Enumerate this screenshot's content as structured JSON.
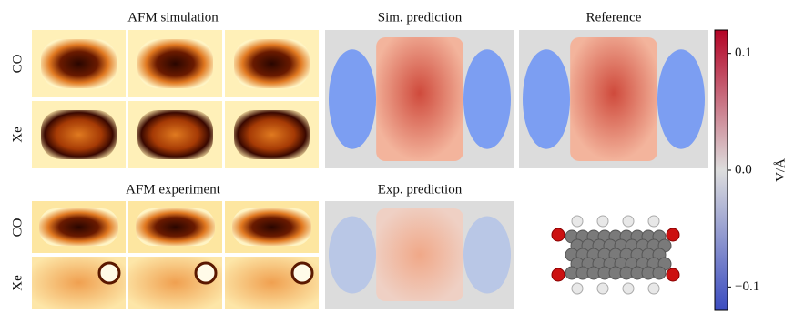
{
  "panels": {
    "afm_simulation": "AFM simulation",
    "sim_prediction": "Sim. prediction",
    "reference": "Reference",
    "afm_experiment": "AFM experiment",
    "exp_prediction": "Exp. prediction"
  },
  "row_labels": {
    "sim_top": "CO",
    "sim_bottom": "Xe",
    "exp_top": "CO",
    "exp_bottom": "Xe"
  },
  "chart_data": {
    "type": "colorbar",
    "ylabel": "V/Å",
    "ylim": [
      -0.12,
      0.12
    ],
    "yticks": [
      0.1,
      {
        "value": 0,
        "label": "0.0"
      },
      {
        "value": -0.1,
        "label": "−0.1"
      }
    ],
    "colors": [
      "#3b4cc0",
      "#dddddd",
      "#b40426"
    ]
  }
}
